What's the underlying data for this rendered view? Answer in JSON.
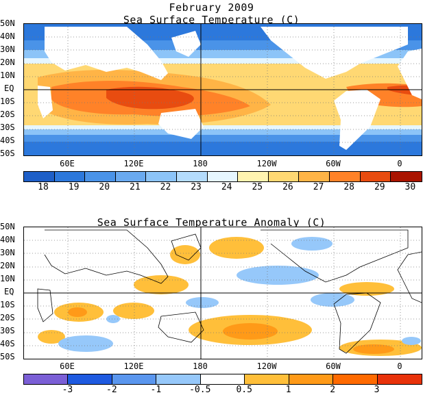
{
  "top": {
    "title_line1": "February 2009",
    "title_line2": "Sea Surface Temperature (C)",
    "lat_labels": [
      "50N",
      "40N",
      "30N",
      "20N",
      "10N",
      "EQ",
      "10S",
      "20S",
      "30S",
      "40S",
      "50S"
    ],
    "lon_labels": [
      "60E",
      "120E",
      "180",
      "120W",
      "60W",
      "0"
    ],
    "colorbar": {
      "colors": [
        "#1e5fc8",
        "#2c78dc",
        "#4a93e8",
        "#6aaaf0",
        "#8cc4f8",
        "#b4dcfc",
        "#e6f6ff",
        "#fff3b0",
        "#ffd873",
        "#ffb446",
        "#ff8228",
        "#e84c10",
        "#aa1400"
      ],
      "labels": [
        "18",
        "19",
        "20",
        "21",
        "22",
        "23",
        "24",
        "25",
        "26",
        "27",
        "28",
        "29",
        "30"
      ]
    }
  },
  "bottom": {
    "title": "Sea Surface Temperature Anomaly (C)",
    "lat_labels": [
      "50N",
      "40N",
      "30N",
      "20N",
      "10N",
      "EQ",
      "10S",
      "20S",
      "30S",
      "40S",
      "50S"
    ],
    "lon_labels": [
      "60E",
      "120E",
      "180",
      "120W",
      "60W",
      "0"
    ],
    "colorbar": {
      "colors": [
        "#7b5fd6",
        "#1e5ae0",
        "#5a96ee",
        "#96c8fa",
        "#ffffff",
        "#ffbf3a",
        "#ff9a18",
        "#ff6a00",
        "#e8320a"
      ],
      "labels": [
        "-3",
        "-2",
        "-1",
        "-0.5",
        "0.5",
        "1",
        "2",
        "3"
      ]
    }
  }
}
